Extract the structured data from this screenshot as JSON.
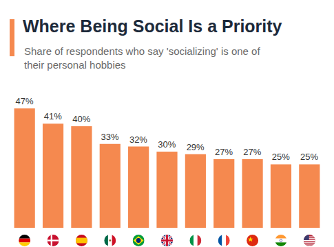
{
  "chart_data": {
    "type": "bar",
    "title": "Where Being Social Is a Priority",
    "subtitle": "Share of respondents who say 'socializing' is one of their personal hobbies",
    "categories": [
      null,
      null,
      null,
      null,
      null,
      null,
      null,
      null,
      null,
      null,
      null
    ],
    "values": [
      47,
      41,
      40,
      33,
      32,
      30,
      29,
      27,
      27,
      25,
      25
    ],
    "value_labels": [
      "47%",
      "41%",
      "40%",
      "33%",
      "32%",
      "30%",
      "29%",
      "27%",
      "27%",
      "25%",
      "25%"
    ],
    "color": "#f5894f",
    "ylim": [
      0,
      47
    ],
    "grid": false,
    "data_labels": true,
    "tick_labels": false
  }
}
